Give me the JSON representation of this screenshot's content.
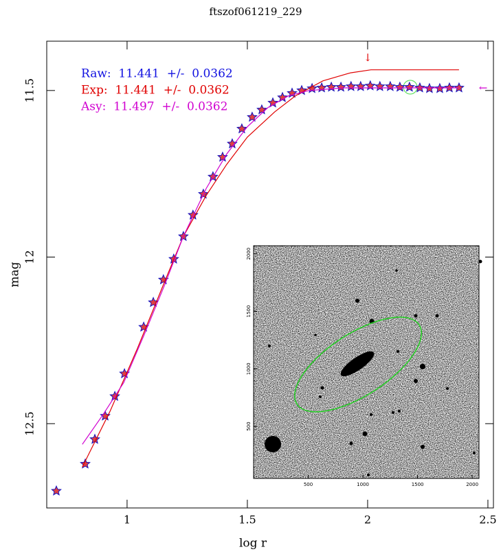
{
  "chart_data": {
    "type": "scatter",
    "title": "ftszof061219_229",
    "x_label": "log r",
    "y_label": "mag",
    "xlim": [
      0.666,
      2.523
    ],
    "ylim": [
      12.753,
      11.352
    ],
    "xticks": [
      1,
      1.5,
      2,
      2.5
    ],
    "yticks": [
      11.5,
      12,
      12.5
    ],
    "series": [
      {
        "kind": "points",
        "color": "#e04040",
        "edge_color": "#1010c0",
        "x": [
          0.706,
          0.826,
          0.866,
          0.909,
          0.949,
          0.989,
          1.069,
          1.109,
          1.151,
          1.194,
          1.234,
          1.274,
          1.317,
          1.357,
          1.397,
          1.437,
          1.477,
          1.52,
          1.56,
          1.606,
          1.646,
          1.686,
          1.726,
          1.769,
          1.809,
          1.849,
          1.889,
          1.931,
          1.971,
          2.011,
          2.051,
          2.094,
          2.134,
          2.174,
          2.217,
          2.257,
          2.3,
          2.34,
          2.38
        ],
        "values": [
          12.702,
          12.621,
          12.547,
          12.477,
          12.418,
          12.35,
          12.21,
          12.136,
          12.068,
          12.006,
          11.938,
          11.874,
          11.811,
          11.759,
          11.7,
          11.66,
          11.615,
          11.58,
          11.558,
          11.537,
          11.521,
          11.508,
          11.5,
          11.494,
          11.492,
          11.49,
          11.49,
          11.488,
          11.488,
          11.486,
          11.488,
          11.488,
          11.49,
          11.49,
          11.492,
          11.494,
          11.494,
          11.492,
          11.492
        ]
      },
      {
        "kind": "line",
        "color": "#e00000",
        "x": [
          0.814,
          0.929,
          1.043,
          1.157,
          1.234,
          1.329,
          1.414,
          1.5,
          1.614,
          1.7,
          1.814,
          1.929,
          2.014,
          2.38
        ],
        "values": [
          12.63,
          12.463,
          12.274,
          12.072,
          11.938,
          11.815,
          11.722,
          11.64,
          11.564,
          11.516,
          11.471,
          11.447,
          11.438,
          11.438
        ]
      },
      {
        "kind": "line",
        "color": "#d000d0",
        "x": [
          0.814,
          0.9,
          0.986,
          1.071,
          1.157,
          1.234,
          1.329,
          1.414,
          1.5,
          1.586,
          1.671,
          1.757,
          1.9,
          2.38
        ],
        "values": [
          12.562,
          12.473,
          12.377,
          12.233,
          12.082,
          11.938,
          11.794,
          11.691,
          11.609,
          11.551,
          11.516,
          11.5,
          11.492,
          11.492
        ]
      }
    ],
    "annotations": [
      {
        "text": "Raw:  11.441  +/-  0.0362",
        "color": "#1010e0"
      },
      {
        "text": "Exp:  11.441  +/-  0.0362",
        "color": "#e00000"
      },
      {
        "text": "Asy:  11.497  +/-  0.0362",
        "color": "#d000d0"
      },
      {
        "text": "↓",
        "color": "#e00000"
      },
      {
        "text": "←",
        "color": "#d000d0"
      }
    ],
    "inset": {
      "xlim": [
        0,
        2062
      ],
      "ylim": [
        47,
        2070
      ],
      "xticks": [
        500,
        1000,
        1500,
        2000
      ],
      "yticks": [
        500,
        1000,
        1500,
        2000
      ]
    }
  }
}
